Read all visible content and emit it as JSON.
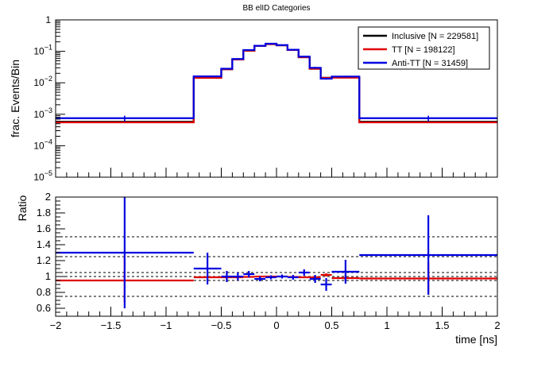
{
  "title": "BB elID Categories",
  "colors": {
    "inclusive": "#000000",
    "tt": "#e00000",
    "antitt": "#0000e0"
  },
  "chart_data": [
    {
      "type": "histogram",
      "title": "BB elID Categories",
      "xlabel": "",
      "ylabel": "frac. Events/Bin",
      "yscale": "log",
      "xlim": [
        -2,
        2
      ],
      "ylim": [
        1e-05,
        1
      ],
      "y_tick_labels": [
        "1",
        "10^{-1}",
        "10^{-2}",
        "10^{-3}",
        "10^{-4}",
        "10^{-5}"
      ],
      "legend_position": "top-right",
      "bin_edges": [
        -2,
        -0.75,
        -0.5,
        -0.4,
        -0.3,
        -0.2,
        -0.1,
        0,
        0.1,
        0.2,
        0.3,
        0.4,
        0.5,
        0.75,
        2
      ],
      "series": [
        {
          "name": "Inclusive [N = 229581]",
          "color_key": "inclusive",
          "values": [
            0.00058,
            0.0145,
            0.027,
            0.055,
            0.105,
            0.15,
            0.17,
            0.155,
            0.11,
            0.065,
            0.028,
            0.0145,
            0.0148,
            0.00058
          ]
        },
        {
          "name": "TT [N = 198122]",
          "color_key": "tt",
          "values": [
            0.00055,
            0.0143,
            0.027,
            0.055,
            0.105,
            0.15,
            0.17,
            0.155,
            0.11,
            0.065,
            0.028,
            0.0143,
            0.0145,
            0.00055
          ]
        },
        {
          "name": "Anti-TT [N = 31459]",
          "color_key": "antitt",
          "values": [
            0.00075,
            0.016,
            0.028,
            0.057,
            0.11,
            0.15,
            0.175,
            0.158,
            0.112,
            0.068,
            0.03,
            0.0135,
            0.0158,
            0.00075
          ],
          "errors": [
            0.00015,
            0.0008,
            0.0015,
            0.003,
            0.005,
            0.006,
            0.007,
            0.006,
            0.005,
            0.004,
            0.002,
            0.0009,
            0.001,
            0.00015
          ]
        }
      ]
    },
    {
      "type": "ratio",
      "xlabel": "time [ns]",
      "ylabel": "Ratio",
      "xlim": [
        -2,
        2
      ],
      "ylim": [
        0.5,
        2
      ],
      "x_ticks": [
        -2,
        -1.5,
        -1,
        -0.5,
        0,
        0.5,
        1,
        1.5,
        2
      ],
      "x_tick_labels": [
        "−2",
        "−1.5",
        "−1",
        "−0.5",
        "0",
        "0.5",
        "1",
        "1.5",
        "2"
      ],
      "y_ticks": [
        0.6,
        0.8,
        1,
        1.2,
        1.4,
        1.6,
        1.8,
        2
      ],
      "y_tick_labels": [
        "0.6",
        "0.8",
        "1",
        "1.2",
        "1.4",
        "1.6",
        "1.8",
        "2"
      ],
      "reference_lines": [
        0.75,
        0.95,
        1.0,
        1.05,
        1.25,
        1.5
      ],
      "series": [
        {
          "name": "TT",
          "color_key": "tt",
          "x": [
            -1.375,
            -0.625,
            -0.45,
            -0.35,
            -0.25,
            -0.15,
            -0.05,
            0.05,
            0.15,
            0.25,
            0.35,
            0.45,
            0.625,
            1.375
          ],
          "xerr": [
            0.625,
            0.125,
            0.05,
            0.05,
            0.05,
            0.05,
            0.05,
            0.05,
            0.05,
            0.05,
            0.05,
            0.05,
            0.125,
            0.625
          ],
          "y": [
            0.95,
            0.99,
            0.99,
            0.99,
            0.995,
            1.0,
            1.0,
            1.0,
            0.995,
            0.99,
            0.99,
            1.02,
            0.98,
            0.975
          ],
          "yerr": [
            0.28,
            0.04,
            0.02,
            0.015,
            0.01,
            0.008,
            0.006,
            0.006,
            0.008,
            0.01,
            0.015,
            0.02,
            0.04,
            0.2
          ]
        },
        {
          "name": "Anti-TT",
          "color_key": "antitt",
          "x": [
            -1.375,
            -0.625,
            -0.45,
            -0.35,
            -0.25,
            -0.15,
            -0.05,
            0.05,
            0.15,
            0.25,
            0.35,
            0.45,
            0.625,
            1.375
          ],
          "xerr": [
            0.625,
            0.125,
            0.05,
            0.05,
            0.05,
            0.05,
            0.05,
            0.05,
            0.05,
            0.05,
            0.05,
            0.05,
            0.125,
            0.625
          ],
          "y": [
            1.3,
            1.1,
            1.0,
            1.0,
            1.03,
            0.97,
            0.99,
            1.0,
            0.99,
            1.05,
            0.97,
            0.9,
            1.06,
            1.27
          ],
          "yerr": [
            0.7,
            0.2,
            0.07,
            0.05,
            0.04,
            0.03,
            0.025,
            0.025,
            0.03,
            0.04,
            0.05,
            0.08,
            0.15,
            0.5
          ]
        }
      ]
    }
  ]
}
